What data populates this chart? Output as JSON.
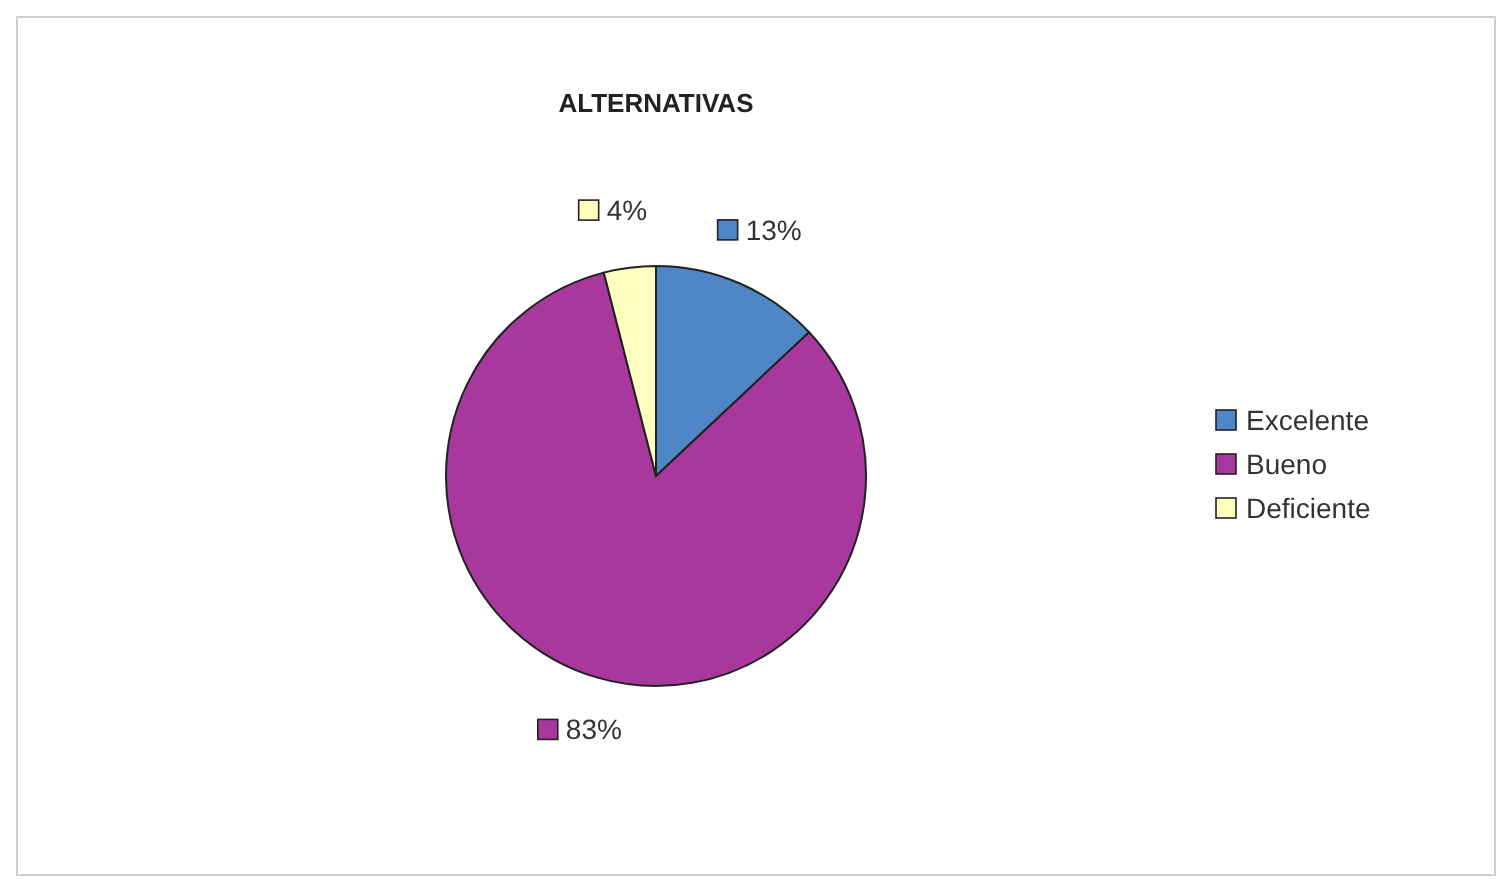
{
  "chart_data": {
    "type": "pie",
    "title": "ALTERNATIVAS",
    "categories": [
      "Excelente",
      "Bueno",
      "Deficiente"
    ],
    "values": [
      13,
      83,
      4
    ],
    "colors": [
      "#4f86c6",
      "#a8389e",
      "#ffffc0"
    ],
    "value_labels": [
      "13%",
      "83%",
      "4%"
    ],
    "legend": "right"
  }
}
